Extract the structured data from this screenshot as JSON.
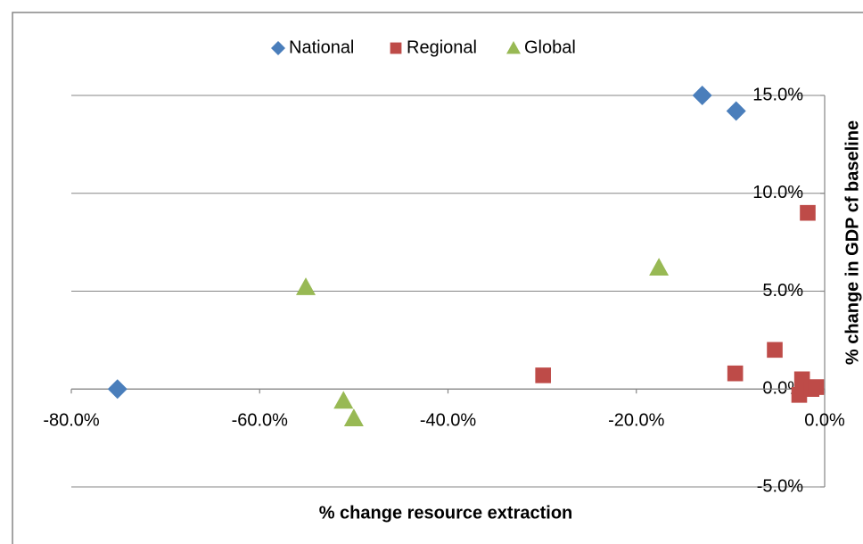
{
  "chart_data": {
    "type": "scatter",
    "x_label": "% change resource extraction",
    "y_label": "% change in GDP cf baseline",
    "xlim": [
      -80,
      0
    ],
    "ylim": [
      -5,
      15
    ],
    "xticks": [
      {
        "value": -80,
        "label": "-80.0%"
      },
      {
        "value": -60,
        "label": "-60.0%"
      },
      {
        "value": -40,
        "label": "-40.0%"
      },
      {
        "value": -20,
        "label": "-20.0%"
      },
      {
        "value": 0,
        "label": "0.0%"
      }
    ],
    "yticks": [
      {
        "value": -5,
        "label": "-5.0%"
      },
      {
        "value": 0,
        "label": "0.0%"
      },
      {
        "value": 5,
        "label": "5.0%"
      },
      {
        "value": 10,
        "label": "10.0%"
      },
      {
        "value": 15,
        "label": "15.0%"
      }
    ],
    "grid": true,
    "legend": "top",
    "series": [
      {
        "name": "National",
        "color": "#4a7ebb",
        "marker": "diamond",
        "x": [
          -75.1,
          -13.0,
          -9.4
        ],
        "values": [
          0.0,
          15.0,
          14.2
        ]
      },
      {
        "name": "Regional",
        "color": "#be4b48",
        "marker": "square",
        "x": [
          -1.8,
          -5.3,
          -9.5,
          -29.9,
          -2.4,
          -2.7,
          -1.4,
          -0.9
        ],
        "values": [
          9.0,
          2.0,
          0.8,
          0.7,
          0.5,
          -0.3,
          0.0,
          0.1
        ]
      },
      {
        "name": "Global",
        "color": "#98b954",
        "marker": "triangle",
        "x": [
          -55.1,
          -17.6,
          -51.1,
          -50.0
        ],
        "values": [
          5.2,
          6.2,
          -0.6,
          -1.5
        ]
      }
    ]
  }
}
